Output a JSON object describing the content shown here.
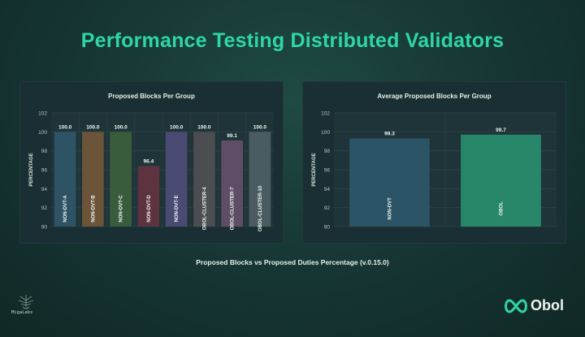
{
  "page": {
    "title": "Performance Testing Distributed Validators",
    "subtitle": "Proposed Blocks vs Proposed Duties Percentage (v.0.15.0)",
    "logo_text": "Obol",
    "small_logo_text": "MigaLabs"
  },
  "colors": {
    "title": "#2fd6a3",
    "panel_bg": "#1a2f33",
    "grid": "#2c4347"
  },
  "chart_data": [
    {
      "type": "bar",
      "title": "Proposed Blocks Per Group",
      "ylabel": "PERCENTAGE",
      "xlabel": "",
      "ylim": [
        90,
        102
      ],
      "yticks": [
        90,
        92,
        94,
        96,
        98,
        100,
        102
      ],
      "grid": true,
      "categories": [
        "NON-DVT-A",
        "NON-DVT-B",
        "NON-DVT-C",
        "NON-DVT-D",
        "NON-DVT-E",
        "OBOL-CLUSTER-4",
        "OBOL-CLUSTER-7",
        "OBOL-CLUSTER-10"
      ],
      "values": [
        100.0,
        100.0,
        100.0,
        96.4,
        100.0,
        100.0,
        99.1,
        100.0
      ],
      "value_labels": [
        "100.0",
        "100.0",
        "100.0",
        "96.4",
        "100.0",
        "100.0",
        "99.1",
        "100.0"
      ],
      "colors": [
        "#2d5364",
        "#6b5438",
        "#385c3c",
        "#5d3340",
        "#4a4a72",
        "#4b4d51",
        "#5f4d66",
        "#4a5c60"
      ]
    },
    {
      "type": "bar",
      "title": "Average Proposed Blocks Per Group",
      "ylabel": "PERCENTAGE",
      "xlabel": "",
      "ylim": [
        90,
        102
      ],
      "yticks": [
        90,
        92,
        94,
        96,
        98,
        100,
        102
      ],
      "grid": true,
      "categories": [
        "NON-DVT",
        "OBOL"
      ],
      "values": [
        99.3,
        99.7
      ],
      "value_labels": [
        "99.3",
        "99.7"
      ],
      "colors": [
        "#2b5566",
        "#28866a"
      ]
    }
  ]
}
